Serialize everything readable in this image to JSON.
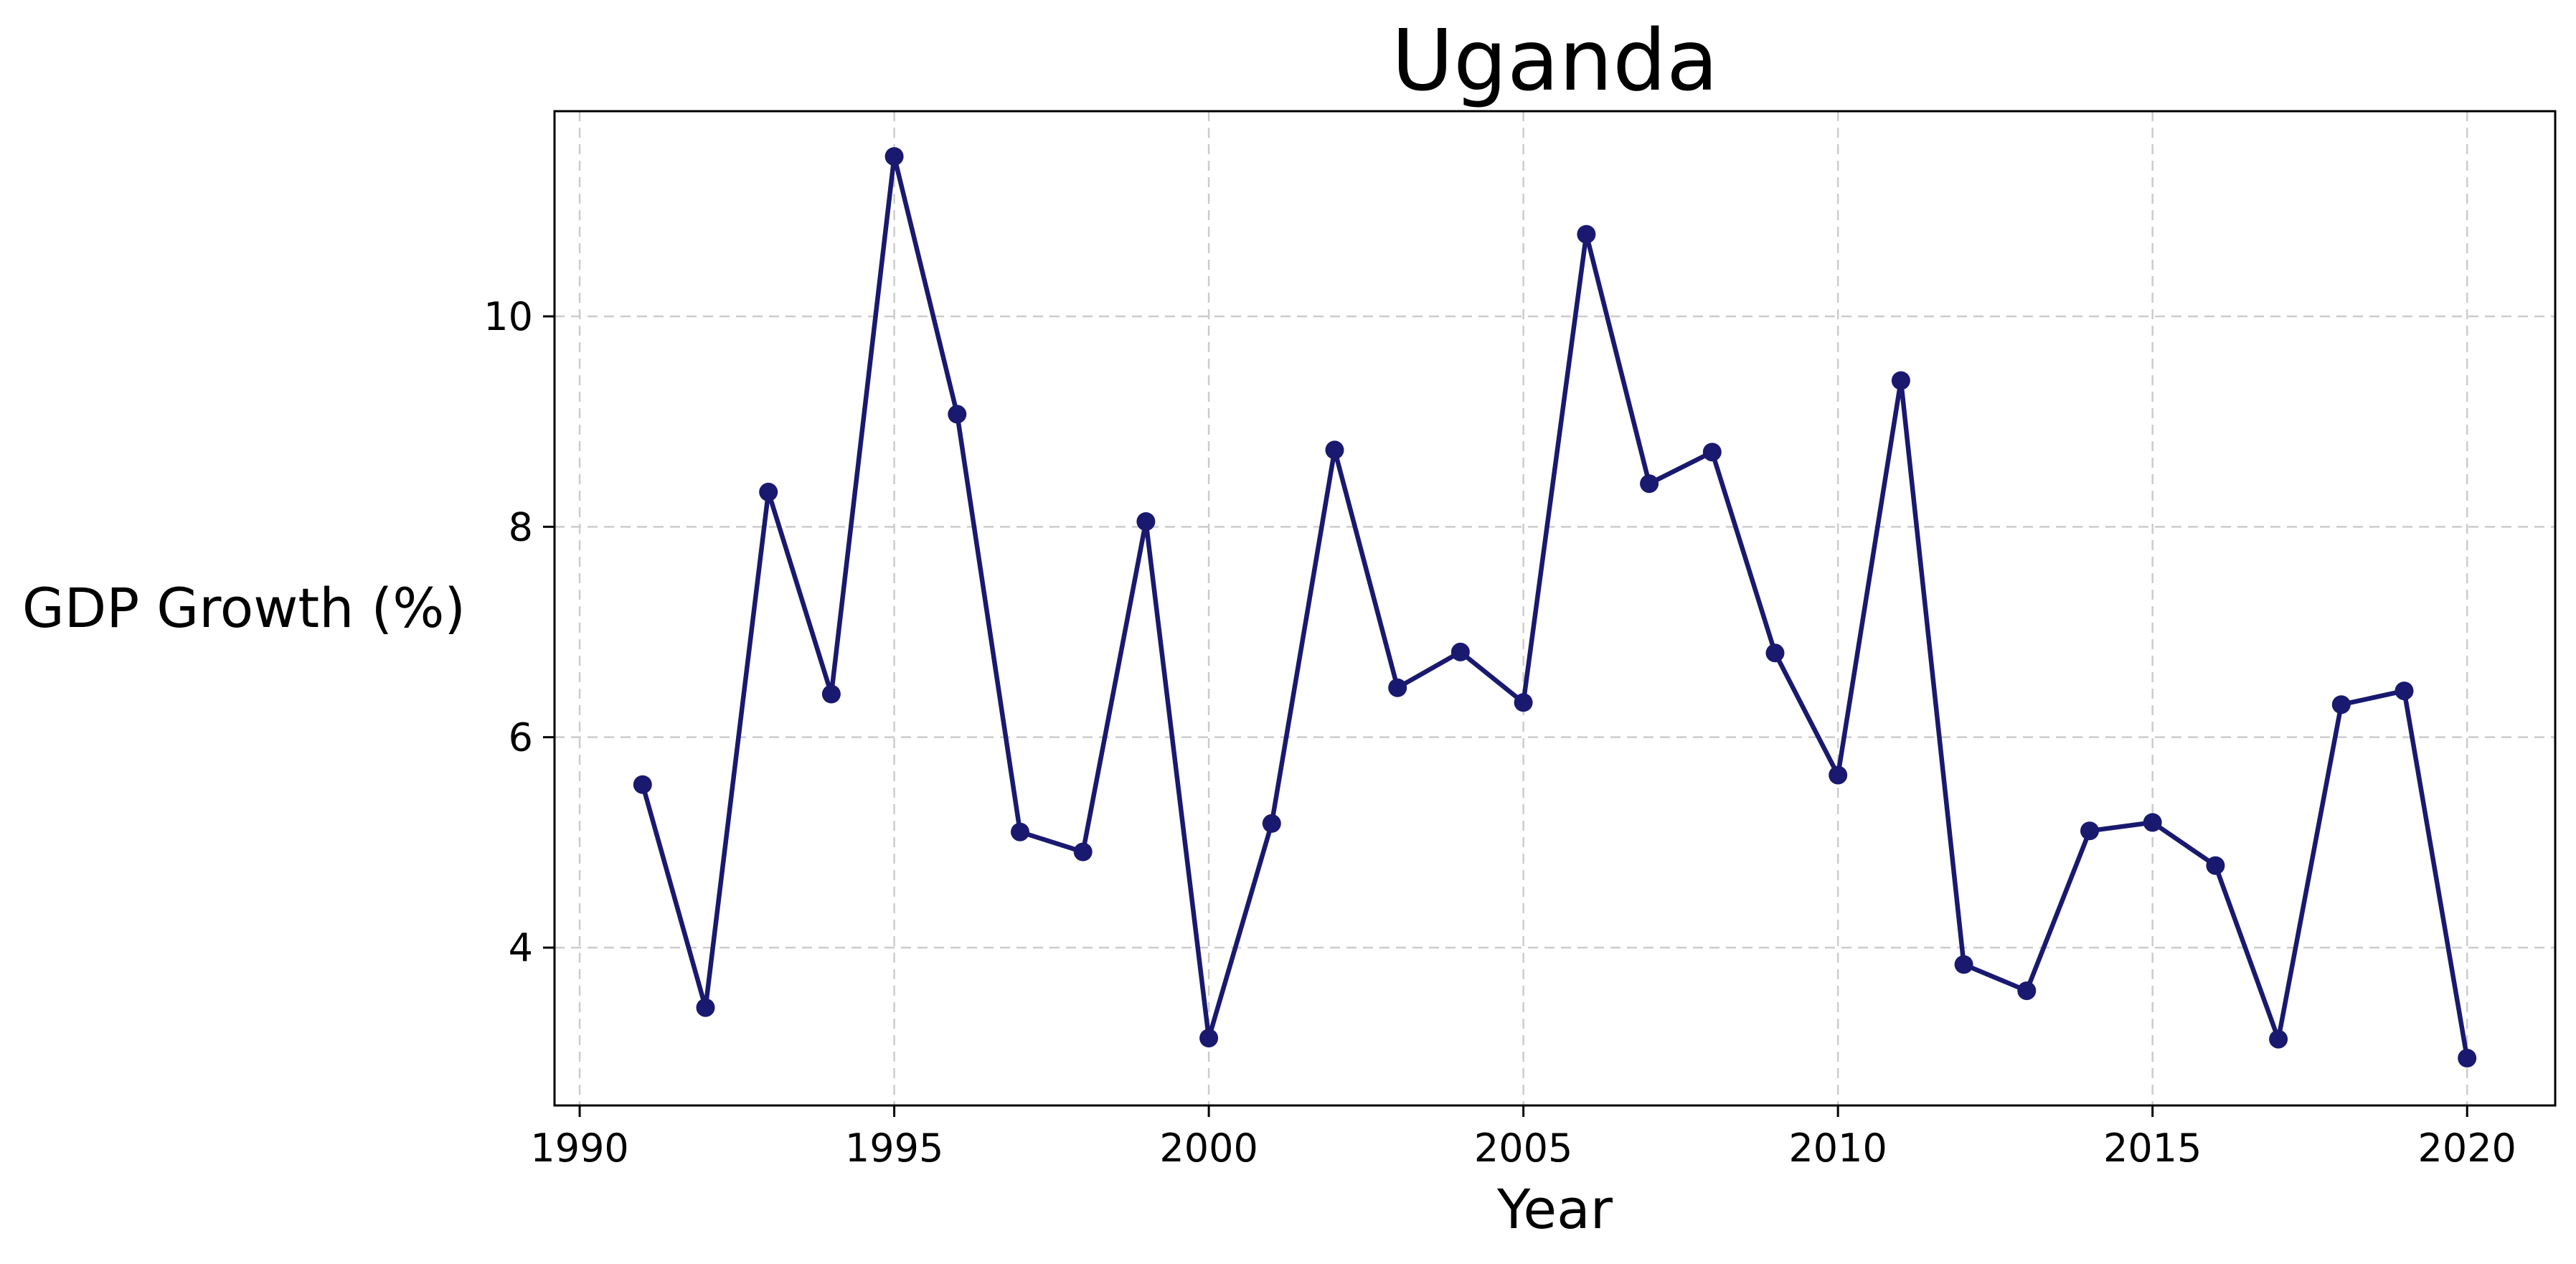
{
  "chart_data": {
    "type": "line",
    "title": "Uganda",
    "xlabel": "Year",
    "ylabel": "GDP Growth (%)",
    "xlim": [
      1989.6,
      2021.4
    ],
    "ylim": [
      2.5,
      11.95
    ],
    "xticks": [
      1990,
      1995,
      2000,
      2005,
      2010,
      2015,
      2020
    ],
    "yticks": [
      4,
      6,
      8,
      10
    ],
    "grid": true,
    "legend": "none",
    "series": [
      {
        "color": "#191970",
        "marker": "circle",
        "x": [
          1991,
          1992,
          1993,
          1994,
          1995,
          1996,
          1997,
          1998,
          1999,
          2000,
          2001,
          2002,
          2003,
          2004,
          2005,
          2006,
          2007,
          2008,
          2009,
          2010,
          2011,
          2012,
          2013,
          2014,
          2015,
          2016,
          2017,
          2018,
          2019,
          2020
        ],
        "values": [
          5.55,
          3.43,
          8.33,
          6.41,
          11.52,
          9.07,
          5.1,
          4.91,
          8.05,
          3.14,
          5.18,
          8.73,
          6.47,
          6.81,
          6.33,
          10.78,
          8.41,
          8.71,
          6.8,
          5.64,
          9.39,
          3.84,
          3.59,
          5.11,
          5.19,
          4.78,
          3.13,
          6.31,
          6.44,
          2.95
        ]
      }
    ]
  }
}
